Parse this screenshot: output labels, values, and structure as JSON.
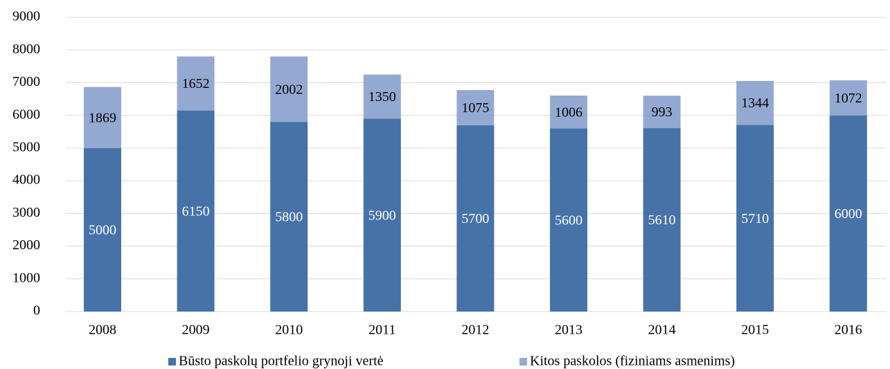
{
  "chart_data": {
    "type": "stacked_bar",
    "categories": [
      "2008",
      "2009",
      "2010",
      "2011",
      "2012",
      "2013",
      "2014",
      "2015",
      "2016"
    ],
    "series": [
      {
        "name": "Būsto paskolų portfelio grynoji vertė",
        "color": "#4672a8",
        "values": [
          5000,
          6150,
          5800,
          5900,
          5700,
          5600,
          5610,
          5710,
          6000
        ]
      },
      {
        "name": "Kitos paskolos (fiziniams asmenims)",
        "color": "#94a9d1",
        "values": [
          1869,
          1652,
          2002,
          1350,
          1075,
          1006,
          993,
          1344,
          1072
        ]
      }
    ],
    "ylim": [
      0,
      9000
    ],
    "yticks": [
      0,
      1000,
      2000,
      3000,
      4000,
      5000,
      6000,
      7000,
      8000,
      9000
    ],
    "grid": true,
    "legend": "bottom"
  }
}
